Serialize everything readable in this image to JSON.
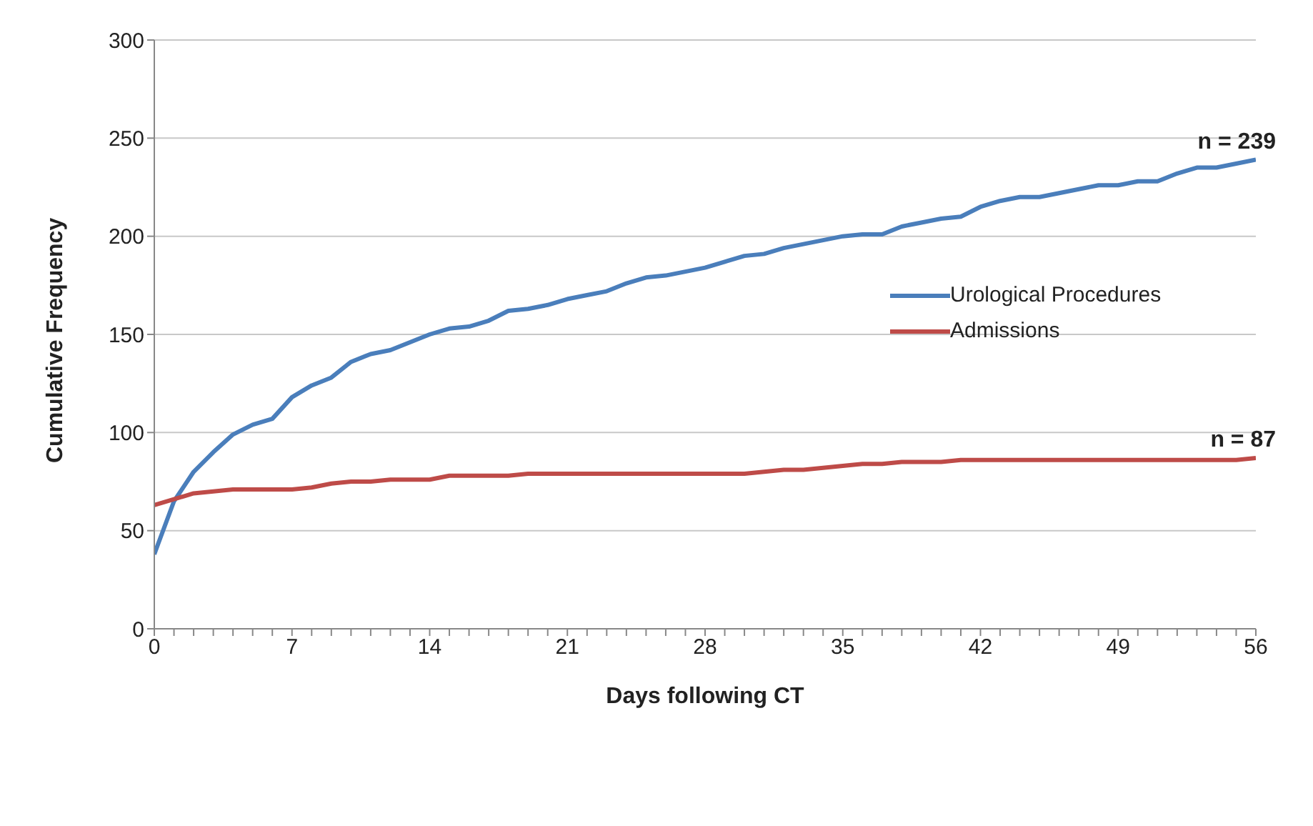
{
  "chart_data": {
    "type": "line",
    "xlabel": "Days following CT",
    "ylabel": "Cumulative Frequency",
    "x": [
      0,
      1,
      2,
      3,
      4,
      5,
      6,
      7,
      8,
      9,
      10,
      11,
      12,
      13,
      14,
      15,
      16,
      17,
      18,
      19,
      20,
      21,
      22,
      23,
      24,
      25,
      26,
      27,
      28,
      29,
      30,
      31,
      32,
      33,
      34,
      35,
      36,
      37,
      38,
      39,
      40,
      41,
      42,
      43,
      44,
      45,
      46,
      47,
      48,
      49,
      50,
      51,
      52,
      53,
      54,
      55,
      56
    ],
    "series": [
      {
        "name": "Urological Procedures",
        "color": "#4a7ebb",
        "values": [
          38,
          65,
          80,
          90,
          99,
          104,
          107,
          118,
          124,
          128,
          136,
          140,
          142,
          146,
          150,
          153,
          154,
          157,
          162,
          163,
          165,
          168,
          170,
          172,
          176,
          179,
          180,
          182,
          184,
          187,
          190,
          191,
          194,
          196,
          198,
          200,
          201,
          201,
          205,
          207,
          209,
          210,
          215,
          218,
          220,
          220,
          222,
          224,
          226,
          226,
          228,
          228,
          232,
          235,
          235,
          237,
          239
        ]
      },
      {
        "name": "Admissions",
        "color": "#be4b48",
        "values": [
          63,
          66,
          69,
          70,
          71,
          71,
          71,
          71,
          72,
          74,
          75,
          75,
          76,
          76,
          76,
          78,
          78,
          78,
          78,
          79,
          79,
          79,
          79,
          79,
          79,
          79,
          79,
          79,
          79,
          79,
          79,
          80,
          81,
          81,
          82,
          83,
          84,
          84,
          85,
          85,
          85,
          86,
          86,
          86,
          86,
          86,
          86,
          86,
          86,
          86,
          86,
          86,
          86,
          86,
          86,
          86,
          87
        ]
      }
    ],
    "xlim": [
      0,
      56
    ],
    "xticks": [
      0,
      {
        "value": 1,
        "label": null
      },
      {
        "value": 2,
        "label": null
      },
      {
        "value": 3,
        "label": null
      },
      {
        "value": 4,
        "label": null
      },
      {
        "value": 5,
        "label": null
      },
      {
        "value": 6,
        "label": null
      },
      7,
      {
        "value": 8,
        "label": null
      },
      {
        "value": 9,
        "label": null
      },
      {
        "value": 10,
        "label": null
      },
      {
        "value": 11,
        "label": null
      },
      {
        "value": 12,
        "label": null
      },
      {
        "value": 13,
        "label": null
      },
      14,
      {
        "value": 15,
        "label": null
      },
      {
        "value": 16,
        "label": null
      },
      {
        "value": 17,
        "label": null
      },
      {
        "value": 18,
        "label": null
      },
      {
        "value": 19,
        "label": null
      },
      {
        "value": 20,
        "label": null
      },
      21,
      {
        "value": 22,
        "label": null
      },
      {
        "value": 23,
        "label": null
      },
      {
        "value": 24,
        "label": null
      },
      {
        "value": 25,
        "label": null
      },
      {
        "value": 26,
        "label": null
      },
      {
        "value": 27,
        "label": null
      },
      28,
      {
        "value": 29,
        "label": null
      },
      {
        "value": 30,
        "label": null
      },
      {
        "value": 31,
        "label": null
      },
      {
        "value": 32,
        "label": null
      },
      {
        "value": 33,
        "label": null
      },
      {
        "value": 34,
        "label": null
      },
      35,
      {
        "value": 36,
        "label": null
      },
      {
        "value": 37,
        "label": null
      },
      {
        "value": 38,
        "label": null
      },
      {
        "value": 39,
        "label": null
      },
      {
        "value": 40,
        "label": null
      },
      {
        "value": 41,
        "label": null
      },
      42,
      {
        "value": 43,
        "label": null
      },
      {
        "value": 44,
        "label": null
      },
      {
        "value": 45,
        "label": null
      },
      {
        "value": 46,
        "label": null
      },
      {
        "value": 47,
        "label": null
      },
      {
        "value": 48,
        "label": null
      },
      49,
      {
        "value": 50,
        "label": null
      },
      {
        "value": 51,
        "label": null
      },
      {
        "value": 52,
        "label": null
      },
      {
        "value": 53,
        "label": null
      },
      {
        "value": 54,
        "label": null
      },
      {
        "value": 55,
        "label": null
      },
      56
    ],
    "ylim": [
      0,
      300
    ],
    "yticks": [
      0,
      50,
      100,
      150,
      200,
      250,
      300
    ],
    "grid": "y",
    "legend": "right",
    "marker": "none",
    "line_style": "solid",
    "annotations": [
      {
        "text": "n = 239",
        "x": 56,
        "y": 239
      },
      {
        "text": "n = 87",
        "x": 56,
        "y": 87
      }
    ]
  }
}
